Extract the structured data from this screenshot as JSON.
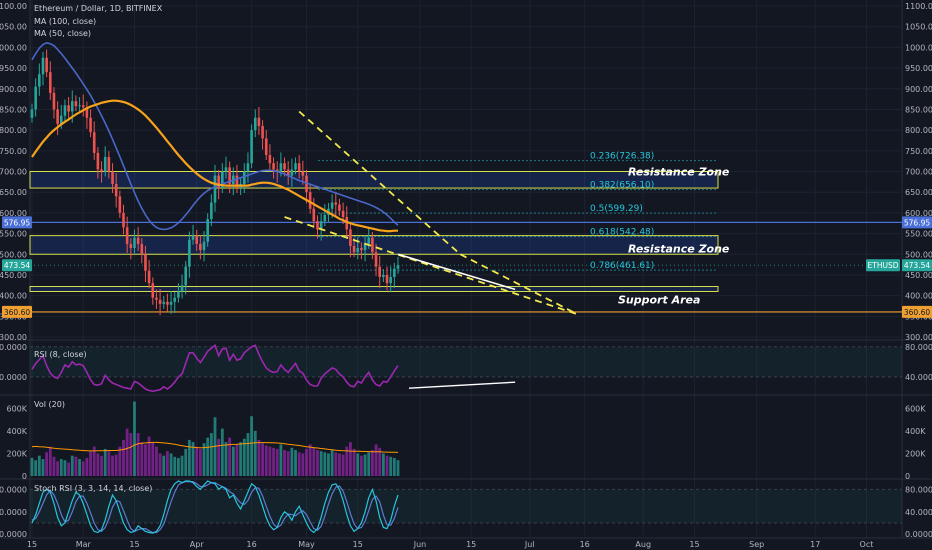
{
  "chart_data": {
    "type": "candlestick",
    "title": "Ethereum / Dollar, 1D, BITFINEX",
    "symbol": "ETHUSD",
    "indicators_main": [
      "MA (100, close)",
      "MA (50, close)"
    ],
    "colors": {
      "up": "#26a69a",
      "down": "#ef5350",
      "ma100": "#f7a21b",
      "ma50": "#4a67c9",
      "fib": "#26c6da",
      "zone_border": "#d8e04a",
      "trend": "#f2e94e",
      "rsi": "#9c27b0",
      "vol_ma": "#ff9800",
      "stoch_k": "#26c6da",
      "stoch_d": "#5d7bd4",
      "support_line": "#f0a030",
      "marker_blue": "#4a6fd6"
    },
    "x_ticks": [
      {
        "label": "15",
        "day": 0
      },
      {
        "label": "Mar",
        "day": 14
      },
      {
        "label": "15",
        "day": 28
      },
      {
        "label": "Apr",
        "day": 45
      },
      {
        "label": "16",
        "day": 60
      },
      {
        "label": "May",
        "day": 75
      },
      {
        "label": "15",
        "day": 89
      },
      {
        "label": "Jun",
        "day": 106
      },
      {
        "label": "15",
        "day": 120
      },
      {
        "label": "Jul",
        "day": 136
      },
      {
        "label": "16",
        "day": 151
      },
      {
        "label": "Aug",
        "day": 167
      },
      {
        "label": "15",
        "day": 181
      },
      {
        "label": "Sep",
        "day": 198
      },
      {
        "label": "17",
        "day": 214
      },
      {
        "label": "Oct",
        "day": 228
      },
      {
        "label": "15",
        "day": 242
      }
    ],
    "price_axis": {
      "ylim": [
        300,
        1100
      ],
      "ticks": [
        "1100.00",
        "1050.00",
        "1000.00",
        "950.00",
        "900.00",
        "850.00",
        "800.00",
        "750.00",
        "700.00",
        "650.00",
        "600.00",
        "550.00",
        "500.00",
        "450.00",
        "400.00",
        "350.00",
        "300.00"
      ]
    },
    "price_tags": {
      "blue_line": "576.95",
      "support_line": "360.60",
      "current": "473.54",
      "current_symbol": "ETHUSD"
    },
    "fibonacci": [
      {
        "label": "0.236(726.38)",
        "price": 726.38
      },
      {
        "label": "0.382(656.10)",
        "price": 656.1
      },
      {
        "label": "0.5(599.29)",
        "price": 599.29
      },
      {
        "label": "0.618(542.48)",
        "price": 542.48
      },
      {
        "label": "0.786(461.61)",
        "price": 461.61
      }
    ],
    "zones": [
      {
        "label": "Resistance Zone",
        "low": 660,
        "high": 700
      },
      {
        "label": "Resistance Zone",
        "low": 500,
        "high": 545
      },
      {
        "label": "Support Area",
        "low": 410,
        "high": 422
      }
    ],
    "close": [
      850,
      905,
      935,
      975,
      940,
      890,
      850,
      815,
      835,
      860,
      845,
      870,
      858,
      860,
      855,
      830,
      795,
      745,
      705,
      700,
      735,
      700,
      670,
      640,
      600,
      565,
      525,
      515,
      540,
      525,
      500,
      460,
      430,
      395,
      390,
      380,
      385,
      378,
      385,
      395,
      410,
      425,
      470,
      535,
      545,
      525,
      510,
      530,
      585,
      625,
      690,
      660,
      700,
      710,
      670,
      690,
      660,
      670,
      700,
      720,
      800,
      830,
      810,
      780,
      740,
      720,
      705,
      700,
      720,
      705,
      690,
      705,
      720,
      700,
      690,
      650,
      610,
      580,
      560,
      580,
      595,
      610,
      625,
      620,
      605,
      590,
      560,
      520,
      505,
      515,
      510,
      525,
      540,
      505,
      470,
      445,
      450,
      430,
      445,
      465,
      473.54
    ],
    "ma100": [
      735,
      748,
      760,
      772,
      782,
      792,
      800,
      807,
      814,
      820,
      826,
      832,
      838,
      843,
      848,
      853,
      857,
      860,
      863,
      866,
      868,
      870,
      871,
      871,
      870,
      868,
      865,
      861,
      856,
      850,
      843,
      835,
      826,
      816,
      806,
      795,
      784,
      773,
      762,
      751,
      740,
      730,
      720,
      711,
      703,
      695,
      688,
      682,
      677,
      673,
      670,
      668,
      667,
      666,
      666,
      666,
      666,
      666,
      666,
      666,
      668,
      670,
      672,
      673,
      673,
      672,
      670,
      667,
      664,
      660,
      656,
      651,
      646,
      641,
      636,
      631,
      626,
      621,
      616,
      611,
      606,
      601,
      596,
      591,
      586,
      582,
      578,
      575,
      572,
      570,
      568,
      566,
      564,
      562,
      560,
      558,
      557,
      556,
      556,
      557,
      557
    ],
    "ma50": [
      970,
      985,
      998,
      1007,
      1011,
      1009,
      1004,
      995,
      985,
      974,
      962,
      950,
      938,
      925,
      912,
      898,
      884,
      868,
      852,
      835,
      817,
      798,
      778,
      757,
      736,
      714,
      692,
      670,
      649,
      629,
      611,
      595,
      582,
      572,
      565,
      561,
      560,
      561,
      564,
      569,
      576,
      585,
      595,
      606,
      618,
      629,
      639,
      647,
      654,
      659,
      663,
      667,
      670,
      673,
      676,
      679,
      682,
      685,
      688,
      691,
      694,
      697,
      700,
      702,
      703,
      703,
      702,
      700,
      697,
      694,
      690,
      686,
      682,
      678,
      675,
      672,
      669,
      666,
      663,
      660,
      657,
      654,
      651,
      648,
      645,
      642,
      639,
      636,
      633,
      630,
      627,
      624,
      621,
      617,
      613,
      608,
      602,
      595,
      587,
      578,
      570
    ],
    "rsi": {
      "label": "RSI (8, close)",
      "ylim": [
        20,
        85
      ],
      "ticks": [
        "80.0000",
        "40.0000"
      ],
      "values": [
        50,
        58,
        63,
        68,
        55,
        45,
        40,
        38,
        46,
        56,
        53,
        60,
        56,
        57,
        55,
        46,
        36,
        30,
        29,
        31,
        42,
        36,
        32,
        30,
        28,
        26,
        25,
        24,
        34,
        32,
        28,
        24,
        22,
        21,
        22,
        23,
        27,
        24,
        28,
        33,
        40,
        44,
        58,
        72,
        72,
        65,
        59,
        66,
        74,
        78,
        82,
        68,
        77,
        78,
        62,
        70,
        62,
        64,
        72,
        76,
        80,
        82,
        70,
        60,
        52,
        48,
        46,
        47,
        56,
        50,
        46,
        52,
        58,
        48,
        45,
        36,
        30,
        28,
        28,
        38,
        44,
        48,
        52,
        50,
        44,
        40,
        33,
        28,
        27,
        34,
        32,
        40,
        46,
        36,
        30,
        28,
        34,
        33,
        40,
        48,
        55
      ]
    },
    "volume": {
      "label": "Vol (20)",
      "ylim": [
        0,
        700000
      ],
      "ticks": [
        "600K",
        "400K",
        "200K",
        "0"
      ],
      "values": [
        160000,
        140000,
        180000,
        150000,
        210000,
        260000,
        170000,
        130000,
        150000,
        140000,
        120000,
        180000,
        170000,
        150000,
        130000,
        160000,
        220000,
        260000,
        200000,
        180000,
        240000,
        220000,
        180000,
        190000,
        260000,
        320000,
        420000,
        380000,
        660000,
        380000,
        300000,
        280000,
        350000,
        300000,
        260000,
        200000,
        180000,
        220000,
        200000,
        170000,
        160000,
        180000,
        240000,
        320000,
        300000,
        260000,
        240000,
        290000,
        340000,
        380000,
        520000,
        330000,
        420000,
        300000,
        340000,
        260000,
        280000,
        300000,
        330000,
        380000,
        530000,
        400000,
        320000,
        290000,
        270000,
        260000,
        250000,
        240000,
        280000,
        230000,
        220000,
        250000,
        230000,
        210000,
        200000,
        240000,
        280000,
        250000,
        230000,
        220000,
        210000,
        200000,
        230000,
        210000,
        200000,
        190000,
        260000,
        300000,
        240000,
        200000,
        180000,
        190000,
        210000,
        230000,
        280000,
        250000,
        200000,
        180000,
        170000,
        160000,
        140000
      ],
      "ma": [
        260000,
        262000,
        260000,
        258000,
        255000,
        250000,
        246000,
        243000,
        240000,
        238000,
        236000,
        232000,
        230000,
        228000,
        226000,
        224000,
        222000,
        222000,
        223000,
        224000,
        225000,
        226000,
        226000,
        226000,
        230000,
        235000,
        245000,
        255000,
        275000,
        285000,
        290000,
        293000,
        296000,
        298000,
        298000,
        296000,
        293000,
        290000,
        286000,
        281000,
        275000,
        268000,
        262000,
        258000,
        254000,
        252000,
        250000,
        252000,
        255000,
        258000,
        264000,
        268000,
        272000,
        275000,
        278000,
        280000,
        282000,
        284000,
        286000,
        288000,
        292000,
        294000,
        296000,
        296000,
        296000,
        295000,
        294000,
        292000,
        290000,
        286000,
        282000,
        278000,
        274000,
        270000,
        265000,
        260000,
        256000,
        252000,
        248000,
        244000,
        240000,
        236000,
        232000,
        229000,
        226000,
        224000,
        222000,
        221000,
        220000,
        219000,
        218000,
        217000,
        216000,
        215000,
        215000,
        214000,
        213000,
        212000,
        211000,
        210000,
        209000
      ]
    },
    "stoch_rsi": {
      "label": "Stoch RSI (3, 3, 14, 14, close)",
      "ylim": [
        -5,
        95
      ],
      "ticks": [
        "80.0000",
        "40.0000",
        "0.0000"
      ],
      "k": [
        20,
        35,
        55,
        75,
        80,
        75,
        55,
        30,
        15,
        20,
        40,
        60,
        75,
        70,
        55,
        35,
        15,
        5,
        3,
        8,
        25,
        50,
        70,
        60,
        40,
        20,
        8,
        3,
        5,
        15,
        10,
        5,
        3,
        2,
        5,
        15,
        35,
        60,
        80,
        90,
        95,
        92,
        95,
        95,
        92,
        85,
        80,
        88,
        95,
        92,
        90,
        80,
        85,
        80,
        65,
        70,
        55,
        45,
        60,
        75,
        90,
        85,
        70,
        50,
        30,
        15,
        8,
        12,
        30,
        40,
        35,
        25,
        40,
        50,
        35,
        20,
        8,
        3,
        10,
        30,
        55,
        75,
        88,
        90,
        80,
        60,
        35,
        15,
        5,
        10,
        20,
        40,
        65,
        80,
        60,
        30,
        12,
        10,
        25,
        50,
        70
      ],
      "d": [
        25,
        28,
        40,
        55,
        70,
        78,
        70,
        55,
        35,
        22,
        25,
        40,
        58,
        68,
        68,
        55,
        38,
        20,
        8,
        5,
        12,
        28,
        48,
        60,
        58,
        42,
        25,
        10,
        5,
        8,
        10,
        10,
        6,
        3,
        3,
        8,
        18,
        38,
        58,
        75,
        88,
        92,
        94,
        94,
        94,
        90,
        85,
        85,
        88,
        92,
        92,
        88,
        85,
        82,
        76,
        72,
        63,
        56,
        53,
        60,
        75,
        83,
        82,
        68,
        50,
        32,
        18,
        12,
        16,
        28,
        36,
        35,
        33,
        38,
        42,
        35,
        22,
        10,
        7,
        14,
        32,
        54,
        72,
        84,
        86,
        77,
        58,
        37,
        18,
        10,
        12,
        23,
        42,
        62,
        68,
        58,
        34,
        17,
        16,
        28,
        48
      ]
    }
  }
}
